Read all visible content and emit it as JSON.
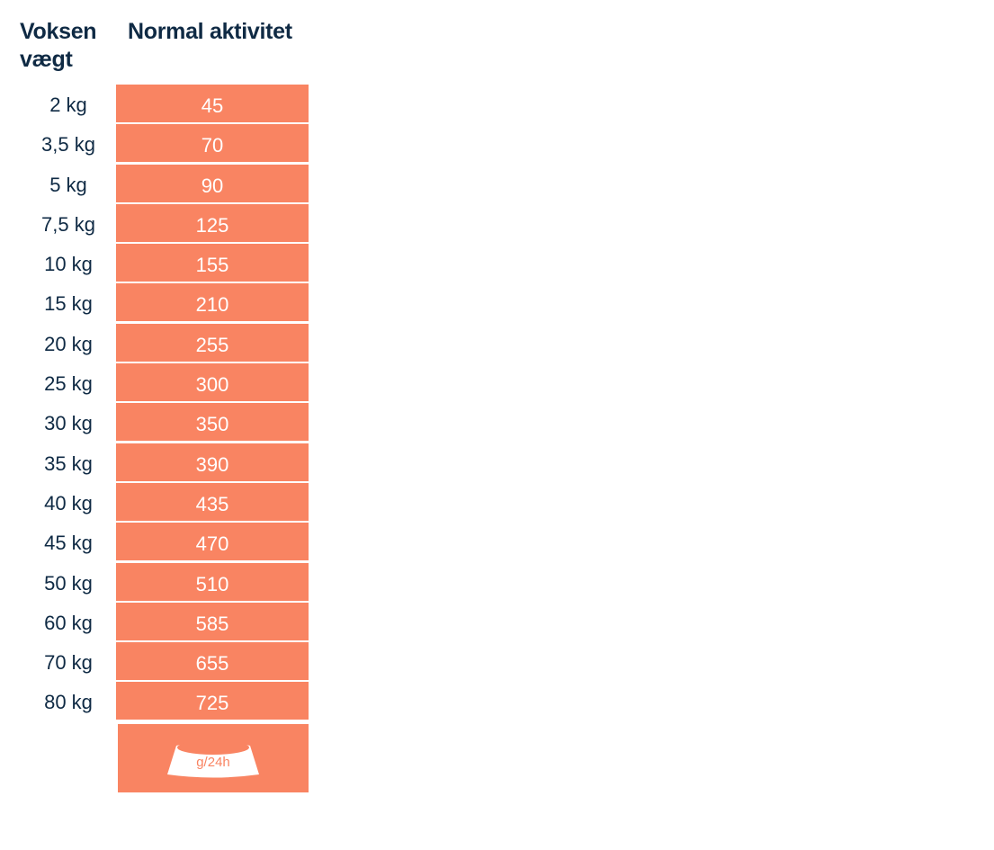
{
  "header": {
    "weight_label": "Voksen vægt",
    "activity_label": "Normal aktivitet"
  },
  "rows": [
    {
      "weight": "2 kg",
      "amount": "45"
    },
    {
      "weight": "3,5 kg",
      "amount": "70"
    },
    {
      "weight": "5 kg",
      "amount": "90"
    },
    {
      "weight": "7,5 kg",
      "amount": "125"
    },
    {
      "weight": "10 kg",
      "amount": "155"
    },
    {
      "weight": "15 kg",
      "amount": "210"
    },
    {
      "weight": "20 kg",
      "amount": "255"
    },
    {
      "weight": "25 kg",
      "amount": "300"
    },
    {
      "weight": "30 kg",
      "amount": "350"
    },
    {
      "weight": "35 kg",
      "amount": "390"
    },
    {
      "weight": "40 kg",
      "amount": "435"
    },
    {
      "weight": "45 kg",
      "amount": "470"
    },
    {
      "weight": "50 kg",
      "amount": "510"
    },
    {
      "weight": "60 kg",
      "amount": "585"
    },
    {
      "weight": "70 kg",
      "amount": "655"
    },
    {
      "weight": "80 kg",
      "amount": "725"
    }
  ],
  "footer": {
    "unit": "g/24h",
    "icon": "food-bowl-icon"
  },
  "colors": {
    "accent": "#f98462",
    "text_dark": "#0f2a44",
    "cell_text": "#ffffff"
  }
}
